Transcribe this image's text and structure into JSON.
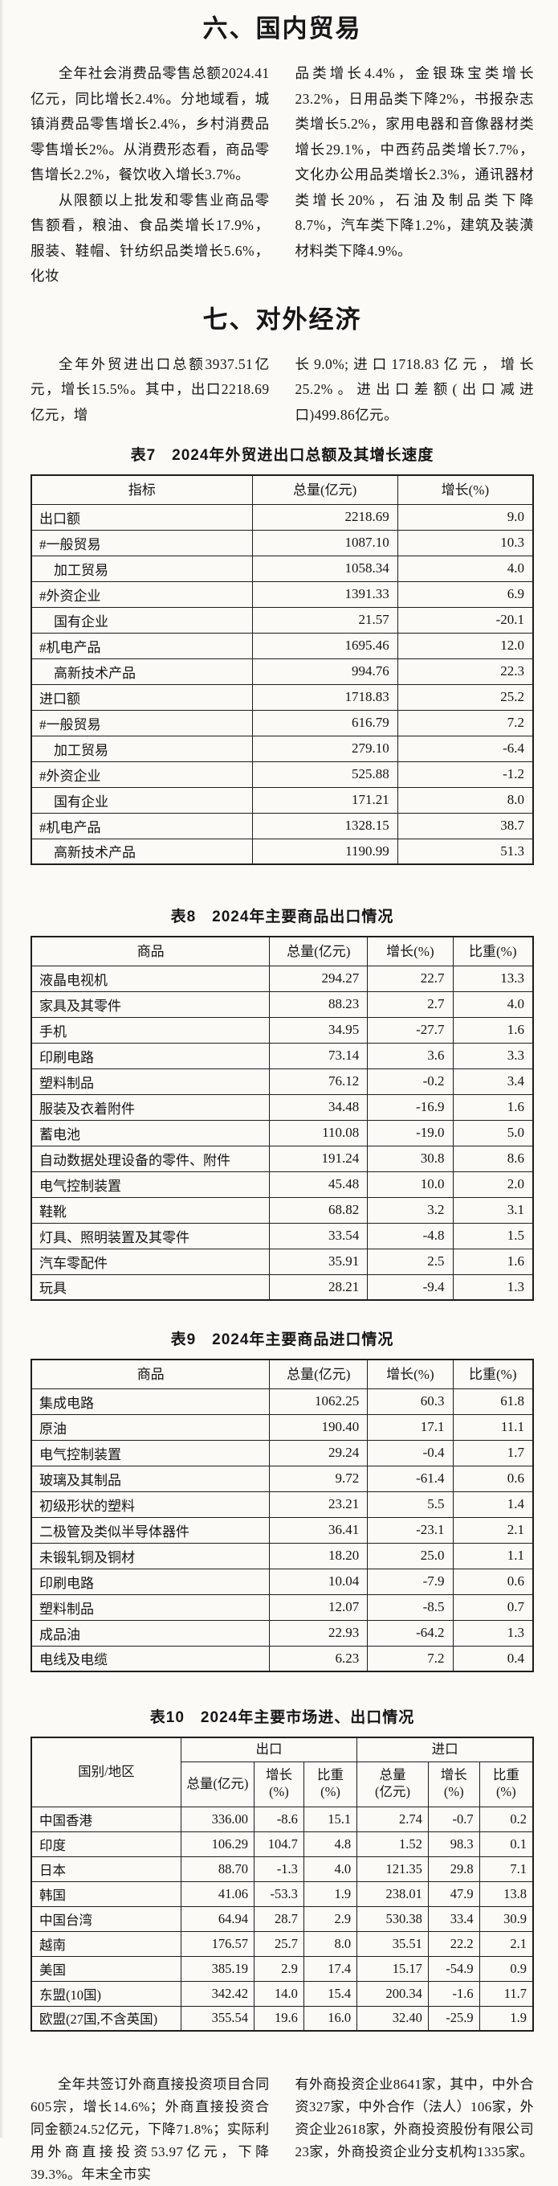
{
  "domestic_trade": {
    "title": "六、国内贸易",
    "left_column": [
      "全年社会消费品零售总额2024.41亿元，同比增长2.4%。分地域看，城镇消费品零售增长2.4%，乡村消费品零售增长2%。从消费形态看，商品零售增长2.2%，餐饮收入增长3.7%。",
      "从限额以上批发和零售业商品零售额看，粮油、食品类增长17.9%，服装、鞋帽、针纺织品类增长5.6%，化妆"
    ],
    "right_column": [
      "品类增长4.4%，金银珠宝类增长23.2%，日用品类下降2%，书报杂志类增长5.2%，家用电器和音像器材类增长29.1%，中西药品类增长7.7%，文化办公用品类增长2.3%，通讯器材类增长20%，石油及制品类下降8.7%，汽车类下降1.2%，建筑及装潢材料类下降4.9%。"
    ]
  },
  "foreign_economy": {
    "title": "七、对外经济",
    "left_column": [
      "全年外贸进出口总额3937.51亿元，增长15.5%。其中，出口2218.69亿元，增"
    ],
    "right_column": [
      "长9.0%;进口1718.83亿元，增长25.2%。进出口差额(出口减进口)499.86亿元。"
    ]
  },
  "tables": {
    "t7": {
      "title": "表7　2024年外贸进出口总额及其增长速度",
      "headers": [
        "指标",
        "总量(亿元)",
        "增长(%)"
      ],
      "rows": [
        {
          "label": "出口额",
          "indent": 0,
          "values": [
            "2218.69",
            "9.0"
          ]
        },
        {
          "label": "#一般贸易",
          "indent": 0,
          "values": [
            "1087.10",
            "10.3"
          ]
        },
        {
          "label": "加工贸易",
          "indent": 1,
          "values": [
            "1058.34",
            "4.0"
          ]
        },
        {
          "label": "#外资企业",
          "indent": 0,
          "values": [
            "1391.33",
            "6.9"
          ]
        },
        {
          "label": "国有企业",
          "indent": 1,
          "values": [
            "21.57",
            "-20.1"
          ]
        },
        {
          "label": "#机电产品",
          "indent": 0,
          "values": [
            "1695.46",
            "12.0"
          ]
        },
        {
          "label": "高新技术产品",
          "indent": 1,
          "values": [
            "994.76",
            "22.3"
          ]
        },
        {
          "label": "进口额",
          "indent": 0,
          "values": [
            "1718.83",
            "25.2"
          ]
        },
        {
          "label": "#一般贸易",
          "indent": 0,
          "values": [
            "616.79",
            "7.2"
          ]
        },
        {
          "label": "加工贸易",
          "indent": 1,
          "values": [
            "279.10",
            "-6.4"
          ]
        },
        {
          "label": "#外资企业",
          "indent": 0,
          "values": [
            "525.88",
            "-1.2"
          ]
        },
        {
          "label": "国有企业",
          "indent": 1,
          "values": [
            "171.21",
            "8.0"
          ]
        },
        {
          "label": "#机电产品",
          "indent": 0,
          "values": [
            "1328.15",
            "38.7"
          ]
        },
        {
          "label": "高新技术产品",
          "indent": 1,
          "values": [
            "1190.99",
            "51.3"
          ]
        }
      ]
    },
    "t8": {
      "title": "表8　2024年主要商品出口情况",
      "headers": [
        "商品",
        "总量(亿元)",
        "增长(%)",
        "比重(%)"
      ],
      "rows": [
        {
          "label": "液晶电视机",
          "values": [
            "294.27",
            "22.7",
            "13.3"
          ]
        },
        {
          "label": "家具及其零件",
          "values": [
            "88.23",
            "2.7",
            "4.0"
          ]
        },
        {
          "label": "手机",
          "values": [
            "34.95",
            "-27.7",
            "1.6"
          ]
        },
        {
          "label": "印刷电路",
          "values": [
            "73.14",
            "3.6",
            "3.3"
          ]
        },
        {
          "label": "塑料制品",
          "values": [
            "76.12",
            "-0.2",
            "3.4"
          ]
        },
        {
          "label": "服装及衣着附件",
          "values": [
            "34.48",
            "-16.9",
            "1.6"
          ]
        },
        {
          "label": "蓄电池",
          "values": [
            "110.08",
            "-19.0",
            "5.0"
          ]
        },
        {
          "label": "自动数据处理设备的零件、附件",
          "values": [
            "191.24",
            "30.8",
            "8.6"
          ]
        },
        {
          "label": "电气控制装置",
          "values": [
            "45.48",
            "10.0",
            "2.0"
          ]
        },
        {
          "label": "鞋靴",
          "values": [
            "68.82",
            "3.2",
            "3.1"
          ]
        },
        {
          "label": "灯具、照明装置及其零件",
          "values": [
            "33.54",
            "-4.8",
            "1.5"
          ]
        },
        {
          "label": "汽车零配件",
          "values": [
            "35.91",
            "2.5",
            "1.6"
          ]
        },
        {
          "label": "玩具",
          "values": [
            "28.21",
            "-9.4",
            "1.3"
          ]
        }
      ]
    },
    "t9": {
      "title": "表9　2024年主要商品进口情况",
      "headers": [
        "商品",
        "总量(亿元)",
        "增长(%)",
        "比重(%)"
      ],
      "rows": [
        {
          "label": "集成电路",
          "values": [
            "1062.25",
            "60.3",
            "61.8"
          ]
        },
        {
          "label": "原油",
          "values": [
            "190.40",
            "17.1",
            "11.1"
          ]
        },
        {
          "label": "电气控制装置",
          "values": [
            "29.24",
            "-0.4",
            "1.7"
          ]
        },
        {
          "label": "玻璃及其制品",
          "values": [
            "9.72",
            "-61.4",
            "0.6"
          ]
        },
        {
          "label": "初级形状的塑料",
          "values": [
            "23.21",
            "5.5",
            "1.4"
          ]
        },
        {
          "label": "二极管及类似半导体器件",
          "values": [
            "36.41",
            "-23.1",
            "2.1"
          ]
        },
        {
          "label": "未锻轧铜及铜材",
          "values": [
            "18.20",
            "25.0",
            "1.1"
          ]
        },
        {
          "label": "印刷电路",
          "values": [
            "10.04",
            "-7.9",
            "0.6"
          ]
        },
        {
          "label": "塑料制品",
          "values": [
            "12.07",
            "-8.5",
            "0.7"
          ]
        },
        {
          "label": "成品油",
          "values": [
            "22.93",
            "-64.2",
            "1.3"
          ]
        },
        {
          "label": "电线及电缆",
          "values": [
            "6.23",
            "7.2",
            "0.4"
          ]
        }
      ]
    },
    "t10": {
      "title": "表10　2024年主要市场进、出口情况",
      "corner_header": "国别/地区",
      "group_headers": [
        "出口",
        "进口"
      ],
      "sub_headers": [
        "总量(亿元)",
        "增长\n(%)",
        "比重\n(%)",
        "总量\n(亿元)",
        "增长\n(%)",
        "比重\n(%)"
      ],
      "rows": [
        {
          "label": "中国香港",
          "values": [
            "336.00",
            "-8.6",
            "15.1",
            "2.74",
            "-0.7",
            "0.2"
          ]
        },
        {
          "label": "印度",
          "values": [
            "106.29",
            "104.7",
            "4.8",
            "1.52",
            "98.3",
            "0.1"
          ]
        },
        {
          "label": "日本",
          "values": [
            "88.70",
            "-1.3",
            "4.0",
            "121.35",
            "29.8",
            "7.1"
          ]
        },
        {
          "label": "韩国",
          "values": [
            "41.06",
            "-53.3",
            "1.9",
            "238.01",
            "47.9",
            "13.8"
          ]
        },
        {
          "label": "中国台湾",
          "values": [
            "64.94",
            "28.7",
            "2.9",
            "530.38",
            "33.4",
            "30.9"
          ]
        },
        {
          "label": "越南",
          "values": [
            "176.57",
            "25.7",
            "8.0",
            "35.51",
            "22.2",
            "2.1"
          ]
        },
        {
          "label": "美国",
          "values": [
            "385.19",
            "2.9",
            "17.4",
            "15.17",
            "-54.9",
            "0.9"
          ]
        },
        {
          "label": "东盟(10国)",
          "values": [
            "342.42",
            "14.0",
            "15.4",
            "200.34",
            "-1.6",
            "11.7"
          ]
        },
        {
          "label": "欧盟(27国,不含英国)",
          "values": [
            "355.54",
            "19.6",
            "16.0",
            "32.40",
            "-25.9",
            "1.9"
          ]
        }
      ]
    }
  },
  "closing": {
    "left_column": [
      "全年共签订外商直接投资项目合同605宗，增长14.6%；外商直接投资合同金额24.52亿元，下降71.8%；实际利用外商直接投资53.97亿元，下降39.3%。年末全市实"
    ],
    "right_column": [
      "有外商投资企业8641家，其中，中外合资327家，中外合作（法人）106家，外资企业2618家，外商投资股份有限公司23家，外商投资企业分支机构1335家。"
    ]
  }
}
